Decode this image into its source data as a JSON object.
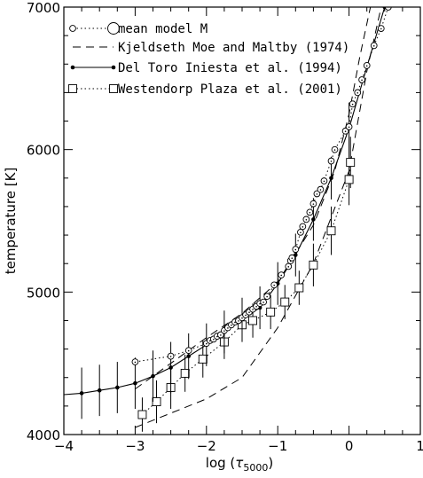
{
  "chart_data": {
    "type": "line",
    "xlabel": "log (τ5000)",
    "xlabel_main": "log (",
    "xlabel_tau": "τ",
    "xlabel_sub": "5000",
    "xlabel_close": ")",
    "ylabel": "temperature [K]",
    "xlim": [
      -4,
      1
    ],
    "ylim": [
      4000,
      7000
    ],
    "xticks": [
      -4,
      -3,
      -2,
      -1,
      0,
      1
    ],
    "xtick_labels": [
      "−4",
      "−3",
      "−2",
      "−1",
      "0",
      "1"
    ],
    "yticks": [
      4000,
      5000,
      6000,
      7000
    ],
    "ytick_labels": [
      "4000",
      "5000",
      "6000",
      "7000"
    ],
    "grid": false,
    "legend_position": "top-left",
    "series": [
      {
        "name": "mean model M",
        "style": "dotted-open-circles",
        "x": [
          -3.0,
          -2.5,
          -2.25,
          -2.0,
          -1.95,
          -1.9,
          -1.85,
          -1.8,
          -1.75,
          -1.7,
          -1.65,
          -1.6,
          -1.55,
          -1.5,
          -1.45,
          -1.4,
          -1.35,
          -1.3,
          -1.25,
          -1.2,
          -1.15,
          -1.05,
          -0.95,
          -0.85,
          -0.82,
          -0.8,
          -0.75,
          -0.68,
          -0.65,
          -0.6,
          -0.55,
          -0.5,
          -0.45,
          -0.4,
          -0.35,
          -0.25,
          -0.2,
          -0.05,
          0.0,
          0.05,
          0.12,
          0.18,
          0.25,
          0.35,
          0.45,
          0.55
        ],
        "y": [
          4510,
          4550,
          4590,
          4640,
          4660,
          4670,
          4690,
          4700,
          4730,
          4750,
          4770,
          4790,
          4800,
          4820,
          4840,
          4860,
          4880,
          4900,
          4920,
          4930,
          4970,
          5050,
          5120,
          5180,
          5220,
          5240,
          5300,
          5420,
          5460,
          5510,
          5560,
          5620,
          5690,
          5720,
          5780,
          5920,
          6000,
          6130,
          6160,
          6320,
          6400,
          6490,
          6590,
          6730,
          6850,
          7000
        ]
      },
      {
        "name": "Kjeldseth Moe and Maltby (1974)",
        "style": "dashed",
        "lines": [
          {
            "x": [
              -3.0,
              -2.5,
              -2.0,
              -1.5,
              -1.0,
              -0.5,
              0.0,
              0.25,
              0.45
            ],
            "y": [
              4050,
              4150,
              4250,
              4400,
              4750,
              5200,
              5850,
              6550,
              7000
            ]
          },
          {
            "x": [
              -3.0,
              -2.5,
              -2.0,
              -1.5,
              -1.0,
              -0.5,
              -0.2,
              0.0,
              0.15,
              0.3
            ],
            "y": [
              4320,
              4500,
              4680,
              4850,
              5070,
              5470,
              5850,
              6250,
              6650,
              7000
            ]
          }
        ]
      },
      {
        "name": "Del Toro Iniesta et al. (1994)",
        "style": "solid-filled-dots-errorbars",
        "x": [
          -4.0,
          -3.75,
          -3.5,
          -3.25,
          -3.0,
          -2.75,
          -2.5,
          -2.25,
          -2.0,
          -1.75,
          -1.5,
          -1.25,
          -1.0,
          -0.75,
          -0.5,
          -0.25,
          0.0,
          0.25,
          0.5
        ],
        "y": [
          4280,
          4290,
          4310,
          4330,
          4360,
          4410,
          4470,
          4550,
          4630,
          4720,
          4810,
          4890,
          5060,
          5260,
          5510,
          5800,
          6150,
          6580,
          7000
        ],
        "err": [
          null,
          180,
          180,
          180,
          180,
          180,
          180,
          160,
          150,
          150,
          150,
          150,
          150,
          150,
          150,
          150,
          180,
          null,
          null
        ]
      },
      {
        "name": "Westendorp Plaza et al. (2001)",
        "style": "dotted-open-squares-errorbars",
        "x": [
          -2.9,
          -2.7,
          -2.5,
          -2.3,
          -2.05,
          -1.75,
          -1.5,
          -1.35,
          -1.1,
          -0.9,
          -0.7,
          -0.5,
          -0.25,
          0.0,
          0.02
        ],
        "y": [
          4140,
          4230,
          4330,
          4430,
          4530,
          4650,
          4770,
          4800,
          4860,
          4930,
          5030,
          5190,
          5430,
          5790,
          5910
        ],
        "err": [
          120,
          150,
          150,
          130,
          130,
          120,
          120,
          120,
          120,
          120,
          120,
          150,
          170,
          180,
          180
        ]
      }
    ]
  }
}
